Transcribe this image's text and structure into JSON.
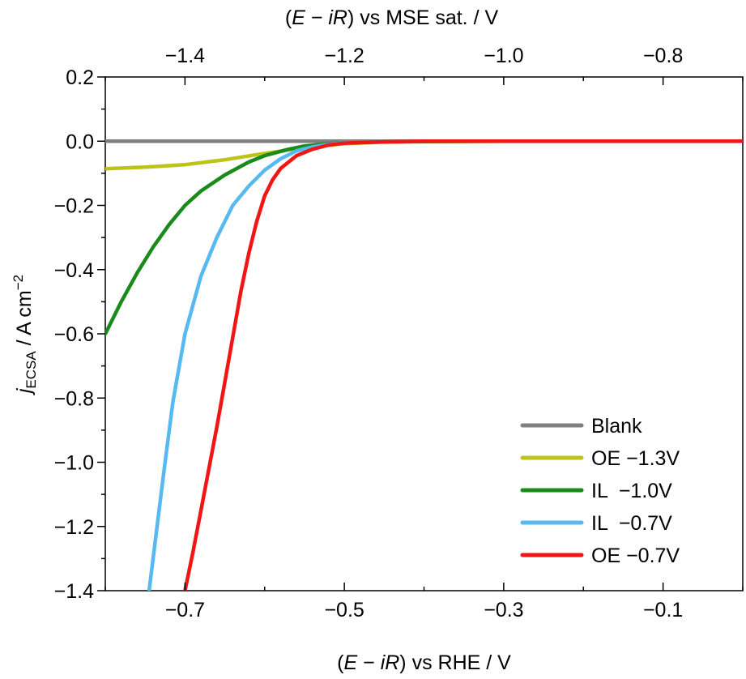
{
  "chart_data": {
    "type": "line",
    "x_axis_bottom": {
      "label_parts": [
        "(",
        "E",
        " − ",
        "iR",
        ") vs RHE / V"
      ],
      "range": [
        -0.8,
        0.0
      ],
      "tick_values": [
        -0.7,
        -0.5,
        -0.3,
        -0.1
      ],
      "tick_labels": [
        "−0.7",
        "−0.5",
        "−0.3",
        "−0.1"
      ]
    },
    "x_axis_top": {
      "label_parts": [
        "(",
        "E",
        " − ",
        "iR",
        ") vs MSE sat. / V"
      ],
      "tick_values": [
        -1.4,
        -1.2,
        -1.0,
        -0.8
      ],
      "tick_labels": [
        "−1.4",
        "−1.2",
        "−1.0",
        "−0.8"
      ]
    },
    "y_axis": {
      "label_parts": [
        "j",
        "ECSA",
        " / A cm",
        "−2"
      ],
      "range": [
        -1.4,
        0.2
      ],
      "tick_values": [
        0.2,
        0.0,
        -0.2,
        -0.4,
        -0.6,
        -0.8,
        -1.0,
        -1.2,
        -1.4
      ],
      "tick_labels": [
        "0.2",
        "0.0",
        "−0.2",
        "−0.4",
        "−0.6",
        "−0.8",
        "−1.0",
        "−1.2",
        "−1.4"
      ]
    },
    "legend_position": "bottom-right",
    "grid": false,
    "series": [
      {
        "name": "Blank",
        "color": "#808080",
        "points": [
          [
            -0.8,
            0.0
          ],
          [
            -0.5,
            0.0
          ],
          [
            -0.2,
            0.0
          ],
          [
            0.0,
            0.0
          ]
        ]
      },
      {
        "name": "OE −1.3V",
        "color": "#bcc41a",
        "points": [
          [
            -0.8,
            -0.086
          ],
          [
            -0.75,
            -0.081
          ],
          [
            -0.7,
            -0.073
          ],
          [
            -0.65,
            -0.058
          ],
          [
            -0.6,
            -0.038
          ],
          [
            -0.55,
            -0.02
          ],
          [
            -0.5,
            -0.008
          ],
          [
            -0.45,
            -0.003
          ],
          [
            -0.4,
            -0.001
          ],
          [
            -0.3,
            0.0
          ],
          [
            0.0,
            0.0
          ]
        ]
      },
      {
        "name": "IL  −1.0V",
        "color": "#1a8a1a",
        "points": [
          [
            -0.8,
            -0.6
          ],
          [
            -0.78,
            -0.5
          ],
          [
            -0.76,
            -0.41
          ],
          [
            -0.74,
            -0.33
          ],
          [
            -0.72,
            -0.26
          ],
          [
            -0.7,
            -0.2
          ],
          [
            -0.68,
            -0.155
          ],
          [
            -0.65,
            -0.105
          ],
          [
            -0.62,
            -0.065
          ],
          [
            -0.6,
            -0.045
          ],
          [
            -0.57,
            -0.025
          ],
          [
            -0.55,
            -0.015
          ],
          [
            -0.52,
            -0.008
          ],
          [
            -0.5,
            -0.005
          ],
          [
            -0.45,
            -0.002
          ],
          [
            -0.4,
            -0.001
          ],
          [
            -0.3,
            0.0
          ],
          [
            0.0,
            0.0
          ]
        ]
      },
      {
        "name": "IL  −0.7V",
        "color": "#56b9f0",
        "points": [
          [
            -0.745,
            -1.4
          ],
          [
            -0.735,
            -1.2
          ],
          [
            -0.725,
            -1.0
          ],
          [
            -0.715,
            -0.81
          ],
          [
            -0.7,
            -0.6
          ],
          [
            -0.68,
            -0.42
          ],
          [
            -0.66,
            -0.3
          ],
          [
            -0.64,
            -0.2
          ],
          [
            -0.62,
            -0.14
          ],
          [
            -0.6,
            -0.09
          ],
          [
            -0.58,
            -0.055
          ],
          [
            -0.56,
            -0.03
          ],
          [
            -0.54,
            -0.018
          ],
          [
            -0.52,
            -0.01
          ],
          [
            -0.5,
            -0.005
          ],
          [
            -0.45,
            -0.002
          ],
          [
            -0.4,
            0.0
          ],
          [
            0.0,
            0.0
          ]
        ]
      },
      {
        "name": "OE −0.7V",
        "color": "#f01616",
        "points": [
          [
            -0.7,
            -1.4
          ],
          [
            -0.69,
            -1.28
          ],
          [
            -0.68,
            -1.15
          ],
          [
            -0.67,
            -1.02
          ],
          [
            -0.66,
            -0.89
          ],
          [
            -0.65,
            -0.75
          ],
          [
            -0.64,
            -0.61
          ],
          [
            -0.63,
            -0.47
          ],
          [
            -0.62,
            -0.35
          ],
          [
            -0.61,
            -0.25
          ],
          [
            -0.6,
            -0.17
          ],
          [
            -0.59,
            -0.12
          ],
          [
            -0.58,
            -0.085
          ],
          [
            -0.56,
            -0.045
          ],
          [
            -0.54,
            -0.025
          ],
          [
            -0.52,
            -0.012
          ],
          [
            -0.5,
            -0.006
          ],
          [
            -0.45,
            -0.002
          ],
          [
            -0.4,
            0.0
          ],
          [
            0.0,
            0.0
          ]
        ]
      }
    ]
  }
}
